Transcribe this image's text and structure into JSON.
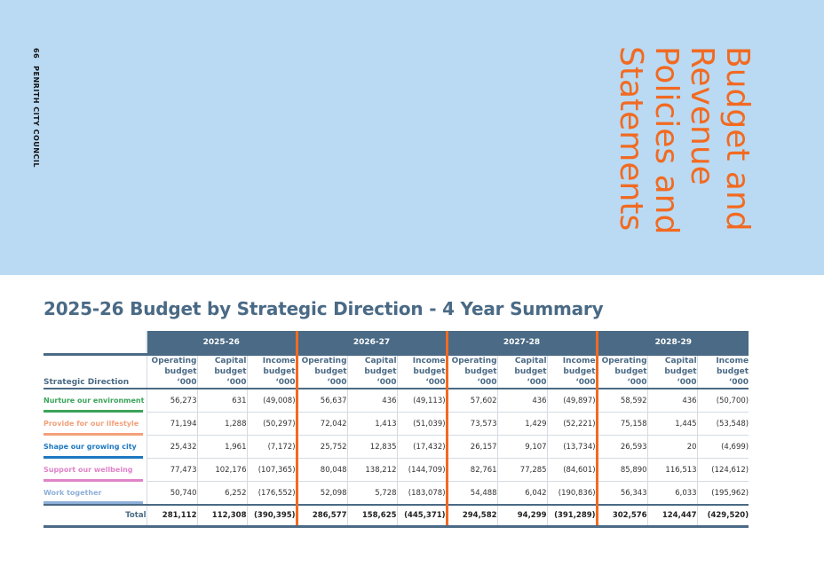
{
  "page": {
    "number": "66",
    "publisher": "PENRITH CITY COUNCIL"
  },
  "section_title": "Budget and\nRevenue\nPolicies and\nStatements",
  "title": "2025-26 Budget by Strategic Direction - 4 Year Summary",
  "table": {
    "years": [
      "2025-26",
      "2026-27",
      "2027-28",
      "2028-29"
    ],
    "direction_header": "Strategic Direction",
    "column_headers": [
      "Operating budget ‘000",
      "Capital budget ‘000",
      "Income budget ‘000"
    ],
    "rows": [
      {
        "name": "Nurture our environment",
        "color": "#3aa35a",
        "values": [
          "56,273",
          "631",
          "(49,008)",
          "56,637",
          "436",
          "(49,113)",
          "57,602",
          "436",
          "(49,897)",
          "58,592",
          "436",
          "(50,700)"
        ]
      },
      {
        "name": "Provide for our lifestyle",
        "color": "#f2a07a",
        "values": [
          "71,194",
          "1,288",
          "(50,297)",
          "72,042",
          "1,413",
          "(51,039)",
          "73,573",
          "1,429",
          "(52,221)",
          "75,158",
          "1,445",
          "(53,548)"
        ]
      },
      {
        "name": "Shape our growing city",
        "color": "#1e78c2",
        "values": [
          "25,432",
          "1,961",
          "(7,172)",
          "25,752",
          "12,835",
          "(17,432)",
          "26,157",
          "9,107",
          "(13,734)",
          "26,593",
          "20",
          "(4,699)"
        ]
      },
      {
        "name": "Support our wellbeing",
        "color": "#e083c8",
        "values": [
          "77,473",
          "102,176",
          "(107,365)",
          "80,048",
          "138,212",
          "(144,709)",
          "82,761",
          "77,285",
          "(84,601)",
          "85,890",
          "116,513",
          "(124,612)"
        ]
      },
      {
        "name": "Work together",
        "color": "#8fb0d8",
        "values": [
          "50,740",
          "6,252",
          "(176,552)",
          "52,098",
          "5,728",
          "(183,078)",
          "54,488",
          "6,042",
          "(190,836)",
          "56,343",
          "6,033",
          "(195,962)"
        ]
      }
    ],
    "total": {
      "label": "Total",
      "values": [
        "281,112",
        "112,308",
        "(390,395)",
        "286,577",
        "158,625",
        "(445,371)",
        "294,582",
        "94,299",
        "(391,289)",
        "302,576",
        "124,447",
        "(429,520)"
      ]
    }
  },
  "colors": {
    "hero_bg": "#b9daf2",
    "accent": "#f26a21",
    "header": "#4a6a85"
  }
}
